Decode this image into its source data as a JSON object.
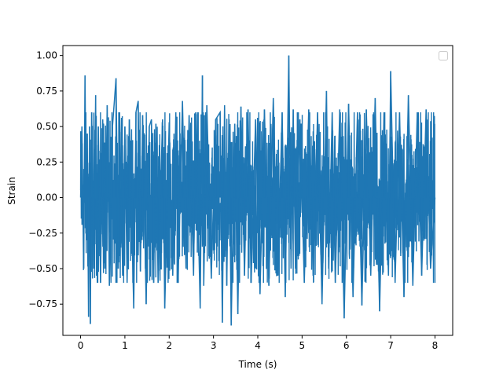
{
  "chart_data": {
    "type": "line",
    "title": "",
    "xlabel": "Time (s)",
    "ylabel": "Strain",
    "xlim": [
      -0.4,
      8.4
    ],
    "ylim": [
      -0.97,
      1.07
    ],
    "x_ticks": [
      0,
      1,
      2,
      3,
      4,
      5,
      6,
      7,
      8
    ],
    "x_tick_labels": [
      "0",
      "1",
      "2",
      "3",
      "4",
      "5",
      "6",
      "7",
      "8"
    ],
    "y_ticks": [
      -0.75,
      -0.5,
      -0.25,
      0.0,
      0.25,
      0.5,
      0.75,
      1.0
    ],
    "y_tick_labels": [
      "−0.75",
      "−0.50",
      "−0.25",
      "0.00",
      "0.25",
      "0.50",
      "0.75",
      "1.00"
    ],
    "grid": false,
    "legend": {
      "placement": "upper right",
      "entries": []
    },
    "series": [
      {
        "color": "#1f77b4",
        "x_start": 0,
        "x_end": 8,
        "description_points": "dense noise signal sampled between 0 and 8 s",
        "x": [
          0.0,
          0.03,
          0.07,
          0.1,
          0.13,
          0.15,
          0.18,
          0.2,
          0.22,
          0.25,
          0.3,
          0.34,
          0.36,
          0.4,
          0.45,
          0.5,
          0.55,
          0.6,
          0.65,
          0.72,
          0.8,
          0.85,
          0.88,
          0.95,
          1.0,
          1.05,
          1.1,
          1.2,
          1.25,
          1.3,
          1.35,
          1.4,
          1.48,
          1.55,
          1.6,
          1.65,
          1.7,
          1.75,
          1.85,
          1.9,
          2.0,
          2.08,
          2.15,
          2.2,
          2.3,
          2.38,
          2.45,
          2.55,
          2.6,
          2.7,
          2.75,
          2.78,
          2.85,
          2.95,
          3.05,
          3.15,
          3.2,
          3.25,
          3.3,
          3.35,
          3.4,
          3.48,
          3.55,
          3.62,
          3.7,
          3.78,
          3.85,
          3.95,
          4.05,
          4.15,
          4.25,
          4.35,
          4.45,
          4.55,
          4.62,
          4.7,
          4.75,
          4.8,
          4.85,
          4.95,
          5.05,
          5.15,
          5.25,
          5.35,
          5.45,
          5.55,
          5.6,
          5.68,
          5.75,
          5.85,
          5.95,
          6.05,
          6.15,
          6.25,
          6.35,
          6.45,
          6.55,
          6.65,
          6.75,
          6.85,
          6.95,
          7.0,
          7.1,
          7.2,
          7.3,
          7.4,
          7.5,
          7.6,
          7.7,
          7.8,
          7.9,
          8.0
        ],
        "y": [
          0.0,
          0.5,
          -0.5,
          0.86,
          -0.3,
          0.45,
          -0.84,
          0.5,
          -0.89,
          0.6,
          -0.5,
          0.72,
          -0.55,
          0.5,
          -0.6,
          0.55,
          -0.5,
          0.65,
          -0.62,
          0.5,
          0.84,
          -0.5,
          0.6,
          -0.55,
          0.5,
          -0.6,
          0.55,
          -0.78,
          0.6,
          0.68,
          -0.52,
          0.58,
          -0.75,
          0.5,
          0.55,
          -0.6,
          0.52,
          -0.6,
          0.55,
          -0.78,
          0.53,
          -0.55,
          0.6,
          -0.6,
          0.68,
          -0.5,
          0.58,
          -0.55,
          0.6,
          -0.78,
          0.86,
          -0.62,
          0.65,
          -0.57,
          0.55,
          0.6,
          -0.88,
          0.65,
          -0.62,
          0.55,
          -0.9,
          0.52,
          -0.82,
          0.64,
          -0.55,
          0.62,
          -0.6,
          0.55,
          -0.68,
          0.62,
          -0.62,
          0.7,
          -0.55,
          0.6,
          -0.7,
          1.0,
          -0.5,
          0.62,
          -0.5,
          0.55,
          -0.6,
          0.62,
          -0.55,
          0.6,
          -0.75,
          0.75,
          -0.5,
          0.6,
          -0.6,
          0.62,
          -0.85,
          0.66,
          -0.7,
          0.6,
          -0.76,
          0.62,
          -0.55,
          0.7,
          -0.8,
          0.6,
          -0.55,
          0.89,
          -0.6,
          0.6,
          -0.7,
          0.72,
          -0.62,
          0.6,
          -0.55,
          0.62,
          -0.5,
          0.0
        ]
      }
    ]
  }
}
